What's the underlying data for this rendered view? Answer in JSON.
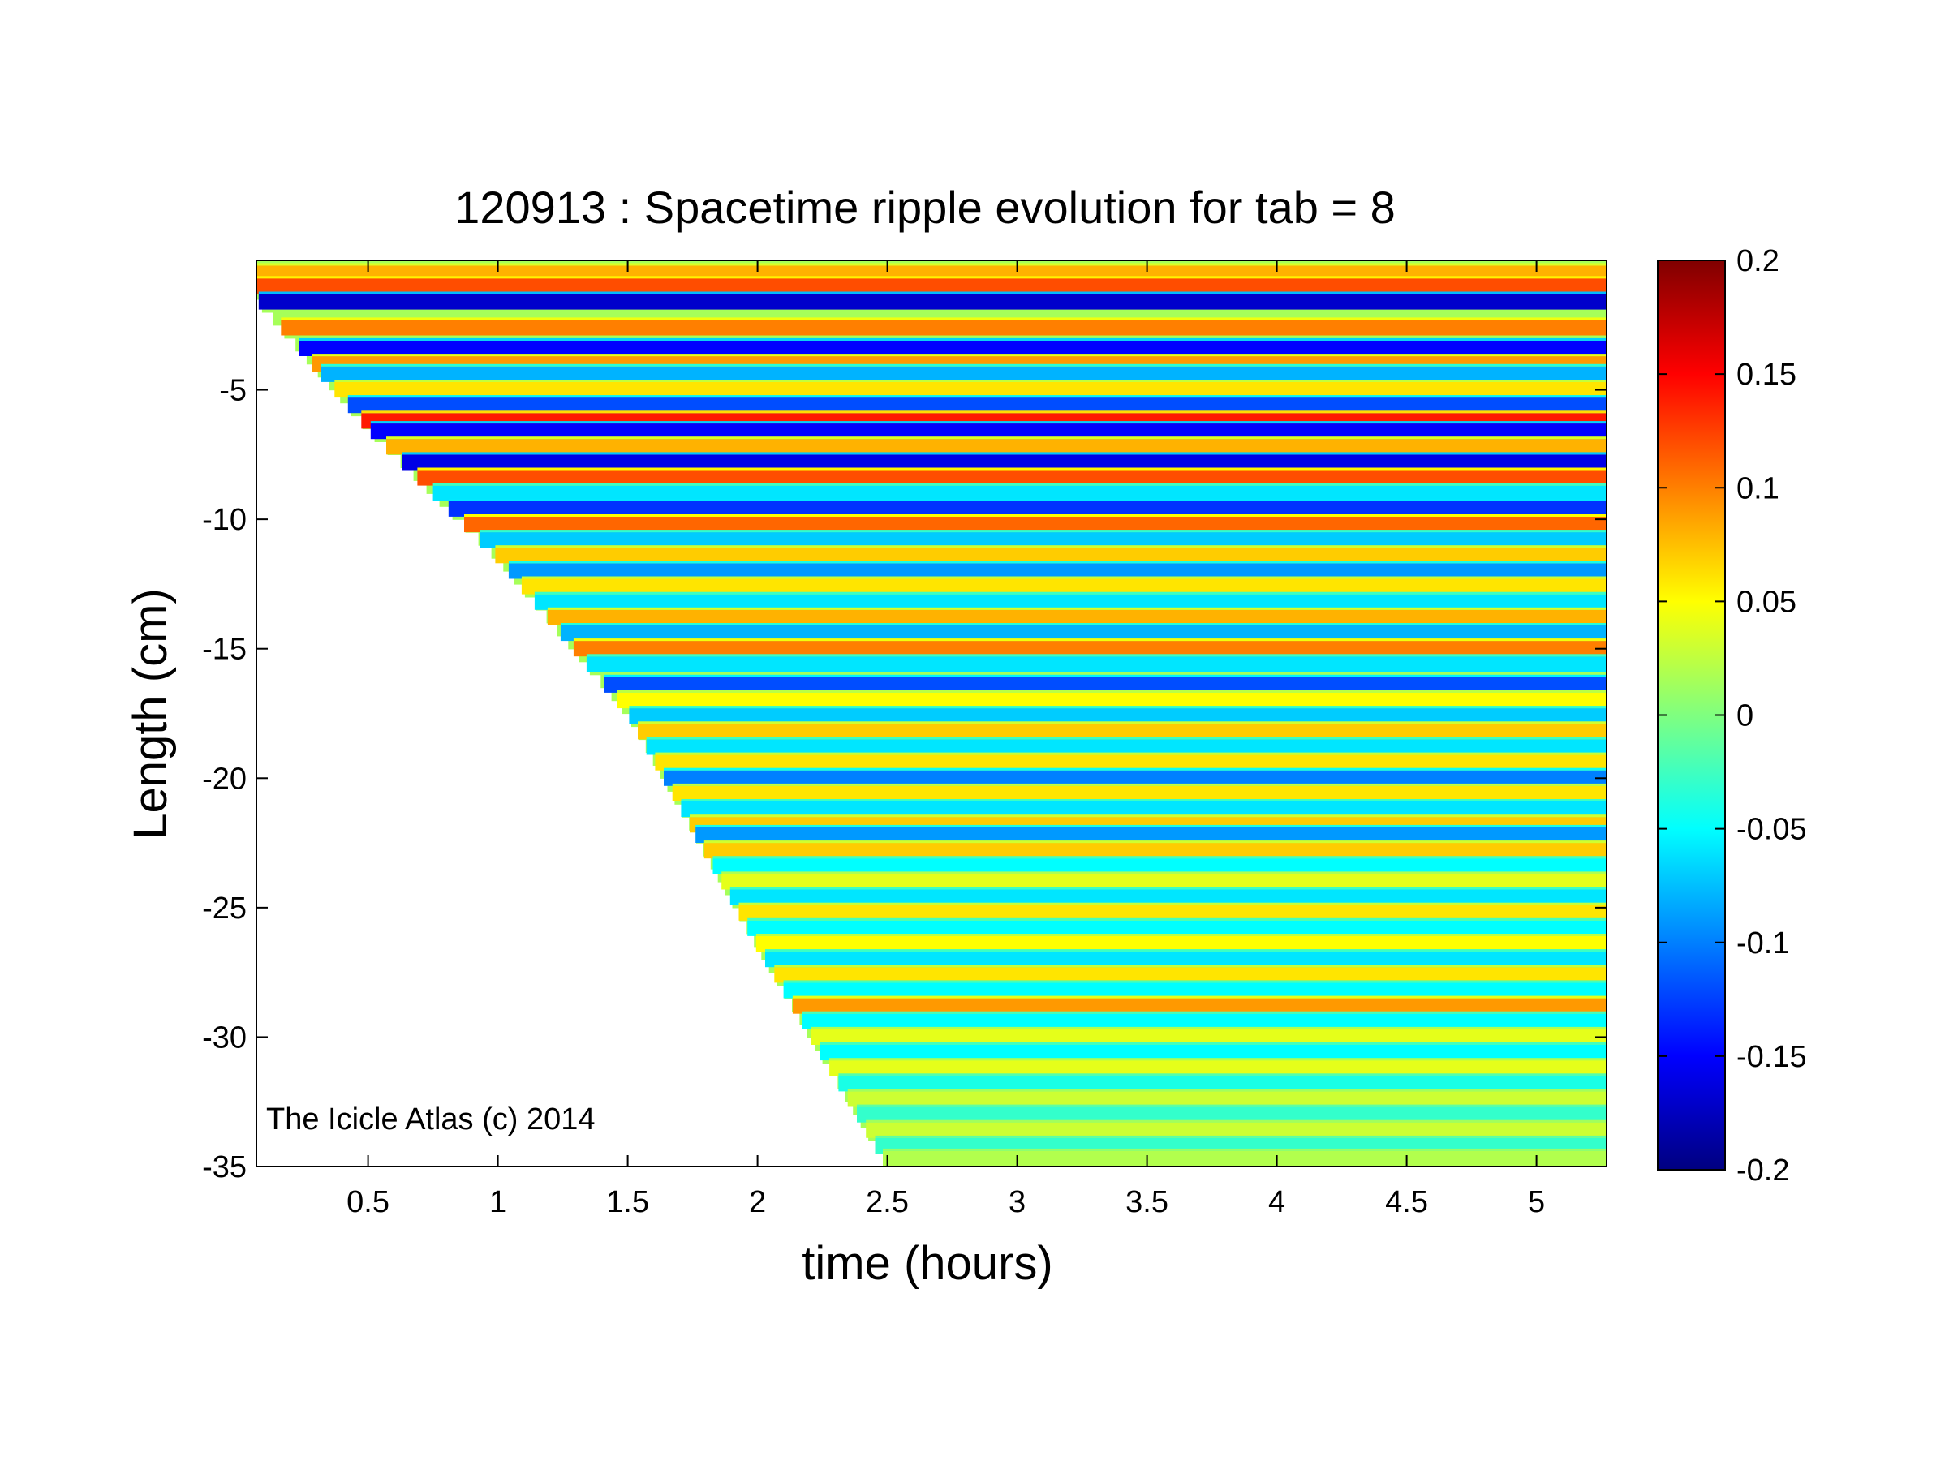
{
  "chart_data": {
    "type": "heatmap",
    "title": "120913 : Spacetime ripple evolution for tab = 8",
    "xlabel": "time (hours)",
    "ylabel": "Length (cm)",
    "annotation": "The Icicle Atlas (c) 2014",
    "xlim": [
      0.07,
      5.27
    ],
    "ylim": [
      -35,
      0
    ],
    "xticks": [
      0.5,
      1,
      1.5,
      2,
      2.5,
      3,
      3.5,
      4,
      4.5,
      5
    ],
    "xtick_labels": [
      "0.5",
      "1",
      "1.5",
      "2",
      "2.5",
      "3",
      "3.5",
      "4",
      "4.5",
      "5"
    ],
    "yticks": [
      -5,
      -10,
      -15,
      -20,
      -25,
      -30,
      -35
    ],
    "ytick_labels": [
      "-5",
      "-10",
      "-15",
      "-20",
      "-25",
      "-30",
      "-35"
    ],
    "colormap": "jet",
    "clim": [
      -0.2,
      0.2
    ],
    "colorbar_ticks": [
      0.2,
      0.15,
      0.1,
      0.05,
      0,
      -0.05,
      -0.1,
      -0.15,
      -0.2
    ],
    "colorbar_tick_labels": [
      "0.2",
      "0.15",
      "0.1",
      "0.05",
      "0",
      "-0.05",
      "-0.1",
      "-0.15",
      "-0.2"
    ],
    "data_front": [
      {
        "time": 0.07,
        "length": -1.5
      },
      {
        "time": 0.5,
        "length": -6.5
      },
      {
        "time": 1.0,
        "length": -11.5
      },
      {
        "time": 1.5,
        "length": -17.5
      },
      {
        "time": 2.0,
        "length": -26.5
      },
      {
        "time": 2.5,
        "length": -35.0
      }
    ],
    "bands": [
      {
        "length": -0.5,
        "value": 0.08
      },
      {
        "length": -1.0,
        "value": 0.12
      },
      {
        "length": -1.6,
        "value": -0.17
      },
      {
        "length": -2.6,
        "value": 0.1
      },
      {
        "length": -3.4,
        "value": -0.15
      },
      {
        "length": -4.0,
        "value": 0.09
      },
      {
        "length": -4.4,
        "value": -0.08
      },
      {
        "length": -5.0,
        "value": 0.06
      },
      {
        "length": -5.6,
        "value": -0.12
      },
      {
        "length": -6.2,
        "value": 0.14
      },
      {
        "length": -6.6,
        "value": -0.15
      },
      {
        "length": -7.2,
        "value": 0.08
      },
      {
        "length": -7.8,
        "value": -0.16
      },
      {
        "length": -8.4,
        "value": 0.12
      },
      {
        "length": -9.0,
        "value": -0.06
      },
      {
        "length": -9.6,
        "value": -0.13
      },
      {
        "length": -10.2,
        "value": 0.11
      },
      {
        "length": -10.8,
        "value": -0.07
      },
      {
        "length": -11.4,
        "value": 0.07
      },
      {
        "length": -12.0,
        "value": -0.09
      },
      {
        "length": -12.6,
        "value": 0.06
      },
      {
        "length": -13.2,
        "value": -0.06
      },
      {
        "length": -13.8,
        "value": 0.08
      },
      {
        "length": -14.4,
        "value": -0.08
      },
      {
        "length": -15.0,
        "value": 0.1
      },
      {
        "length": -15.6,
        "value": -0.06
      },
      {
        "length": -16.4,
        "value": -0.12
      },
      {
        "length": -17.0,
        "value": 0.05
      },
      {
        "length": -17.6,
        "value": -0.07
      },
      {
        "length": -18.2,
        "value": 0.07
      },
      {
        "length": -18.8,
        "value": -0.06
      },
      {
        "length": -19.4,
        "value": 0.06
      },
      {
        "length": -20.0,
        "value": -0.1
      },
      {
        "length": -20.6,
        "value": 0.06
      },
      {
        "length": -21.2,
        "value": -0.06
      },
      {
        "length": -21.8,
        "value": 0.07
      },
      {
        "length": -22.2,
        "value": -0.09
      },
      {
        "length": -22.8,
        "value": 0.07
      },
      {
        "length": -23.4,
        "value": -0.05
      },
      {
        "length": -24.0,
        "value": 0.04
      },
      {
        "length": -24.6,
        "value": -0.06
      },
      {
        "length": -25.2,
        "value": 0.06
      },
      {
        "length": -25.8,
        "value": -0.05
      },
      {
        "length": -26.4,
        "value": 0.05
      },
      {
        "length": -27.0,
        "value": -0.06
      },
      {
        "length": -27.6,
        "value": 0.06
      },
      {
        "length": -28.2,
        "value": -0.05
      },
      {
        "length": -28.8,
        "value": 0.09
      },
      {
        "length": -29.4,
        "value": -0.05
      },
      {
        "length": -30.0,
        "value": 0.04
      },
      {
        "length": -30.6,
        "value": -0.05
      },
      {
        "length": -31.2,
        "value": 0.04
      },
      {
        "length": -31.8,
        "value": -0.04
      },
      {
        "length": -32.4,
        "value": 0.03
      },
      {
        "length": -33.0,
        "value": -0.03
      },
      {
        "length": -33.6,
        "value": 0.03
      },
      {
        "length": -34.2,
        "value": -0.03
      },
      {
        "length": -34.7,
        "value": 0.02
      }
    ]
  }
}
